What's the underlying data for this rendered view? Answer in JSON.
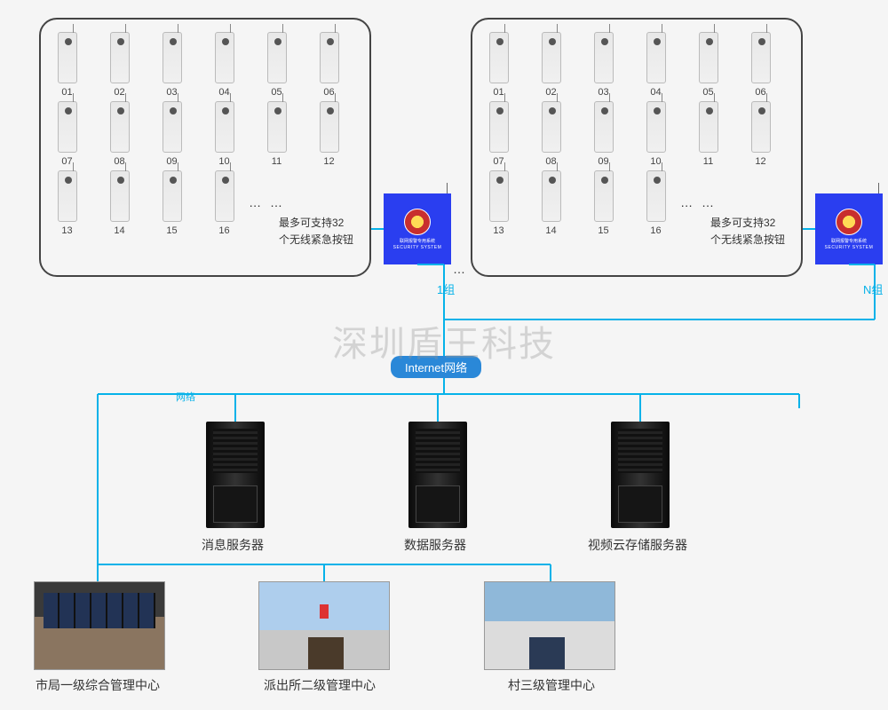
{
  "watermark": "深圳盾王科技",
  "group1": {
    "remotes": [
      "01",
      "02",
      "03",
      "04",
      "05",
      "06",
      "07",
      "08",
      "09",
      "10",
      "11",
      "12",
      "13",
      "14",
      "15",
      "16"
    ],
    "ellipsis": "… …",
    "note_line1": "最多可支持32",
    "note_line2": "个无线紧急按钮",
    "label": "1组"
  },
  "groupN": {
    "remotes": [
      "01",
      "02",
      "03",
      "04",
      "05",
      "06",
      "07",
      "08",
      "09",
      "10",
      "11",
      "12",
      "13",
      "14",
      "15",
      "16"
    ],
    "ellipsis": "… …",
    "note_line1": "最多可支持32",
    "note_line2": "个无线紧急按钮",
    "label": "N组"
  },
  "security_box": {
    "title": "联网报警专用系统",
    "subtitle": "SECURITY SYSTEM"
  },
  "between_groups_dots": "…",
  "internet_label": "Internet网络",
  "network_label": "网络",
  "servers": [
    {
      "label": "消息服务器"
    },
    {
      "label": "数据服务器"
    },
    {
      "label": "视频云存储服务器"
    }
  ],
  "centers": [
    {
      "label": "市局一级综合管理中心"
    },
    {
      "label": "派出所二级管理中心"
    },
    {
      "label": "村三级管理中心"
    }
  ],
  "colors": {
    "line": "#06b2e9",
    "security_box": "#2a3ef0",
    "internet_badge": "#2a88d8",
    "border": "#444444",
    "text": "#333333"
  }
}
